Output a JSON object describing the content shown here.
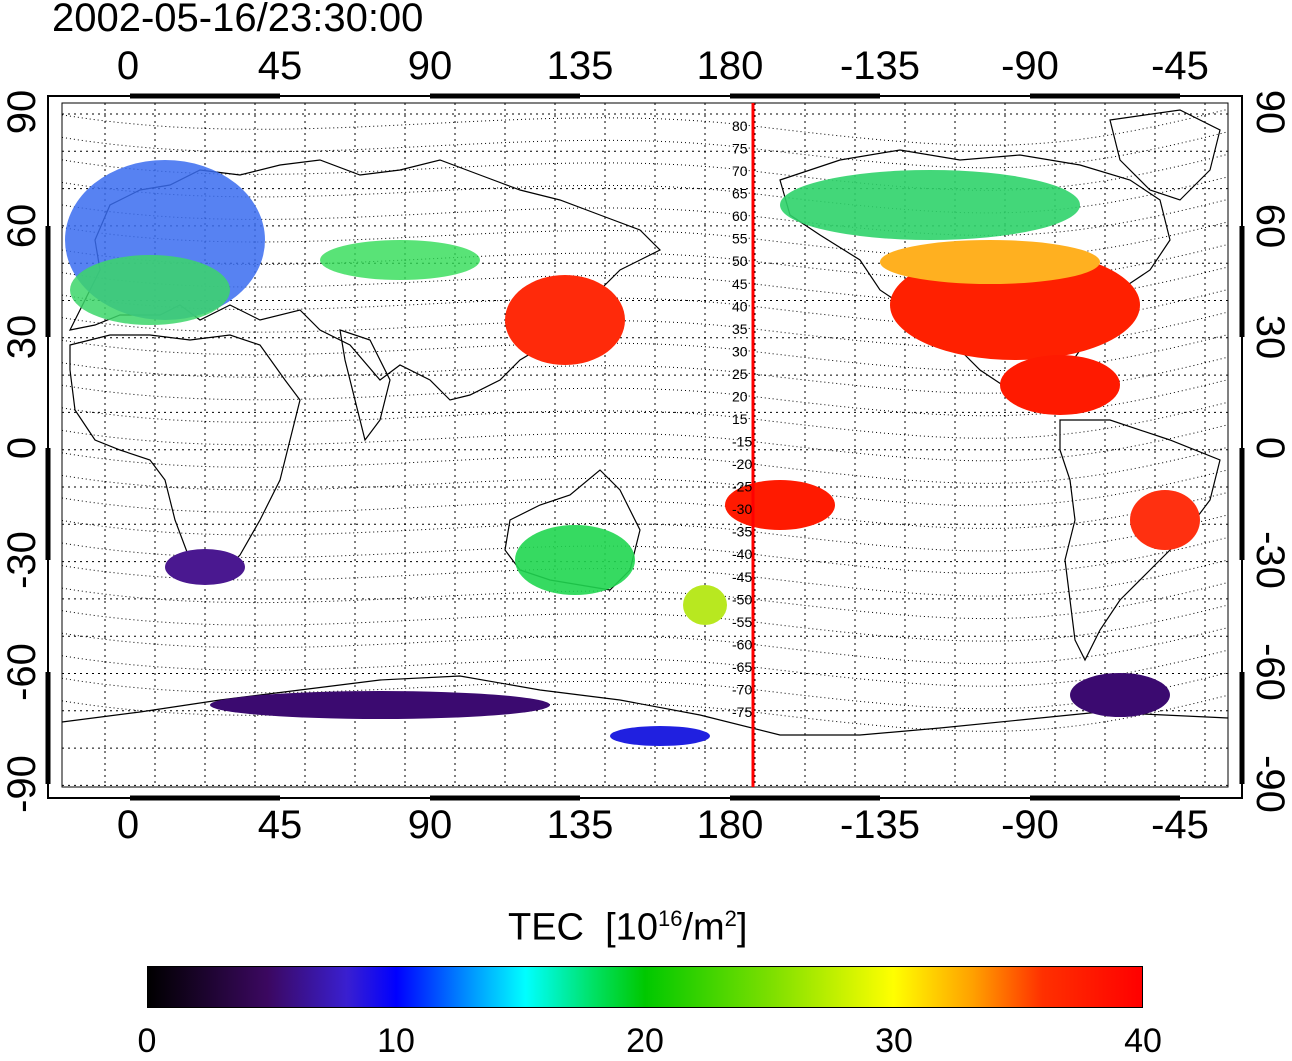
{
  "title": "2002-05-16/23:30:00",
  "x_tick_labels": [
    "0",
    "45",
    "90",
    "135",
    "180",
    "-135",
    "-90",
    "-45"
  ],
  "y_tick_labels": [
    "90",
    "60",
    "30",
    "0",
    "-30",
    "-60",
    "-90"
  ],
  "contour_labels": [
    "80",
    "75",
    "70",
    "65",
    "60",
    "55",
    "50",
    "45",
    "40",
    "35",
    "30",
    "25",
    "20",
    "15",
    "-15",
    "-20",
    "-25",
    "-30",
    "-35",
    "-40",
    "-45",
    "-50",
    "-55",
    "-60",
    "-65",
    "-70",
    "-75"
  ],
  "colorbar": {
    "title": "TEC",
    "units_base": "[10",
    "units_exp1": "16",
    "units_mid": "/m",
    "units_exp2": "2",
    "units_end": "]",
    "tick_labels": [
      "0",
      "10",
      "20",
      "30",
      "40"
    ],
    "range": [
      0,
      40
    ],
    "colormap": "jet-like (black-purple-blue-cyan-green-yellow-orange-red)"
  },
  "colors": {
    "meridian_line": "#ff0000",
    "high_tec": "#ff1a00",
    "mid_tec": "#22cc22",
    "low_tec": "#3b0a70"
  },
  "map": {
    "lon_range": [
      -25,
      335
    ],
    "lat_range": [
      -90,
      90
    ],
    "grid": "dotted",
    "red_meridian_lon": 187
  }
}
